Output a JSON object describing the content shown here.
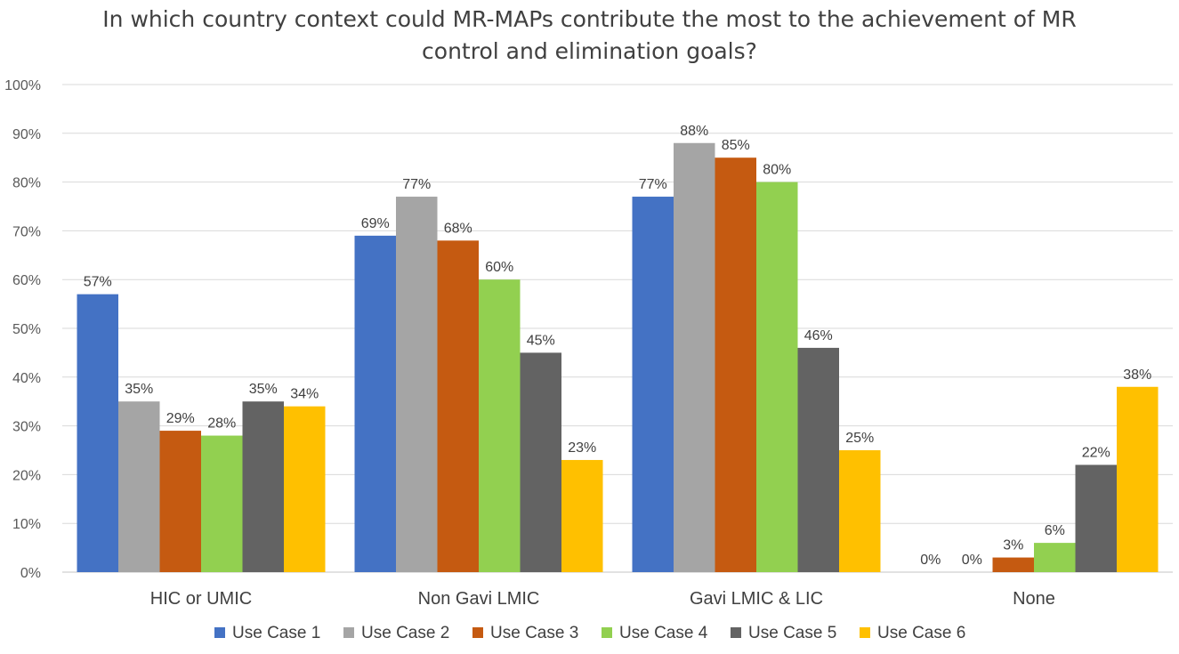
{
  "chart_data": {
    "type": "bar",
    "title_lines": [
      "In which country context could MR-MAPs contribute the most to the achievement of MR",
      "control and elimination goals?"
    ],
    "categories": [
      "HIC or UMIC",
      "Non Gavi LMIC",
      "Gavi LMIC & LIC",
      "None"
    ],
    "ylim": [
      0,
      100
    ],
    "yticks": [
      0,
      10,
      20,
      30,
      40,
      50,
      60,
      70,
      80,
      90,
      100
    ],
    "ytick_suffix": "%",
    "grid": true,
    "legend_position": "bottom",
    "series": [
      {
        "name": "Use Case 1",
        "color": "#4472C4",
        "values": [
          57,
          69,
          77,
          0
        ],
        "labels": [
          "57%",
          "69%",
          "77%",
          "0%"
        ]
      },
      {
        "name": "Use Case 2",
        "color": "#A5A5A5",
        "values": [
          35,
          77,
          88,
          0
        ],
        "labels": [
          "35%",
          "77%",
          "88%",
          "0%"
        ]
      },
      {
        "name": "Use Case 3",
        "color": "#C55A11",
        "values": [
          29,
          68,
          85,
          3
        ],
        "labels": [
          "29%",
          "68%",
          "85%",
          "3%"
        ]
      },
      {
        "name": "Use Case 4",
        "color": "#92D050",
        "values": [
          28,
          60,
          80,
          6
        ],
        "labels": [
          "28%",
          "60%",
          "80%",
          "6%"
        ]
      },
      {
        "name": "Use Case 5",
        "color": "#636363",
        "values": [
          35,
          45,
          46,
          22
        ],
        "labels": [
          "35%",
          "45%",
          "46%",
          "22%"
        ]
      },
      {
        "name": "Use Case 6",
        "color": "#FFC000",
        "values": [
          34,
          23,
          25,
          38
        ],
        "labels": [
          "34%",
          "23%",
          "25%",
          "38%"
        ]
      }
    ]
  }
}
